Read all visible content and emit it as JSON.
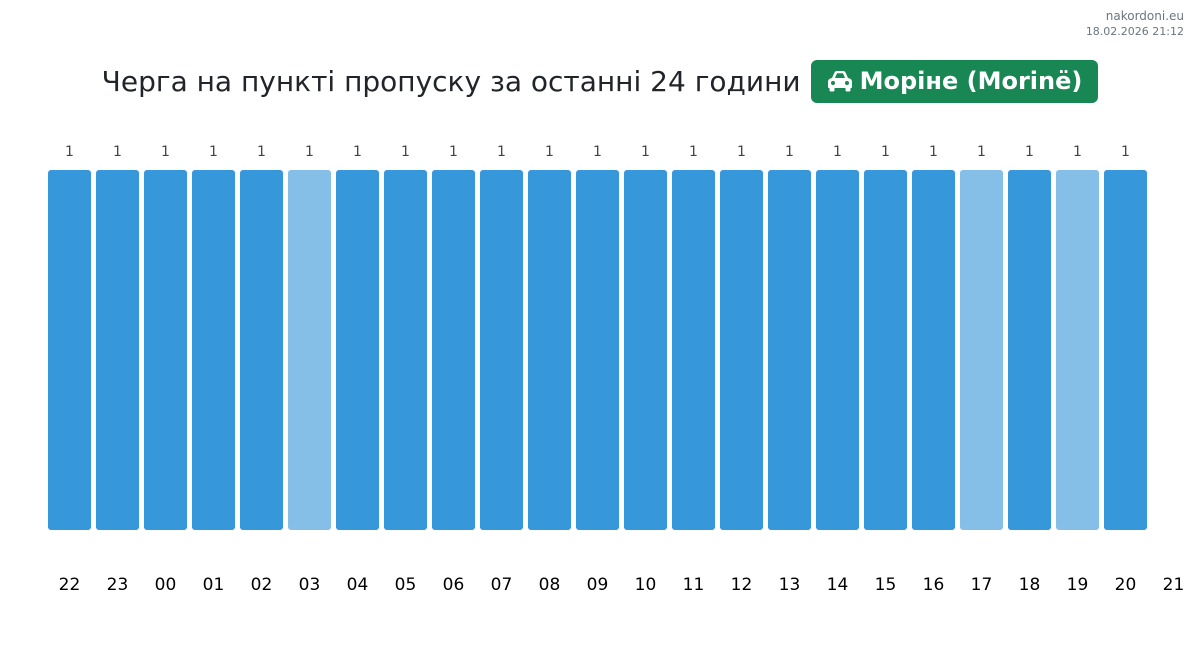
{
  "watermark": {
    "site": "nakordoni.eu",
    "timestamp": "18.02.2026 21:12"
  },
  "header": {
    "title": "Черга на пункті пропуску за останні 24 години",
    "checkpoint_badge": {
      "label": "Моріне (Morinë)",
      "icon": "car-icon",
      "color": "#198754"
    }
  },
  "colors": {
    "bar": "#3797db",
    "bar_highlight": "#85bfe8",
    "value_label": "#444444",
    "hour_label": "#000000"
  },
  "chart_data": {
    "type": "bar",
    "categories": [
      "22",
      "23",
      "00",
      "01",
      "02",
      "03",
      "04",
      "05",
      "06",
      "07",
      "08",
      "09",
      "10",
      "11",
      "12",
      "13",
      "14",
      "15",
      "16",
      "17",
      "18",
      "19",
      "20"
    ],
    "values": [
      1,
      1,
      1,
      1,
      1,
      1,
      1,
      1,
      1,
      1,
      1,
      1,
      1,
      1,
      1,
      1,
      1,
      1,
      1,
      1,
      1,
      1,
      1
    ],
    "highlighted": [
      false,
      false,
      false,
      false,
      false,
      true,
      false,
      false,
      false,
      false,
      false,
      false,
      false,
      false,
      false,
      false,
      false,
      false,
      false,
      true,
      false,
      true,
      false
    ],
    "extra_tick": "21",
    "ylim": [
      0,
      1
    ],
    "grid": false,
    "legend": "none",
    "title": "Черга на пункті пропуску за останні 24 години",
    "xlabel": "",
    "ylabel": ""
  }
}
